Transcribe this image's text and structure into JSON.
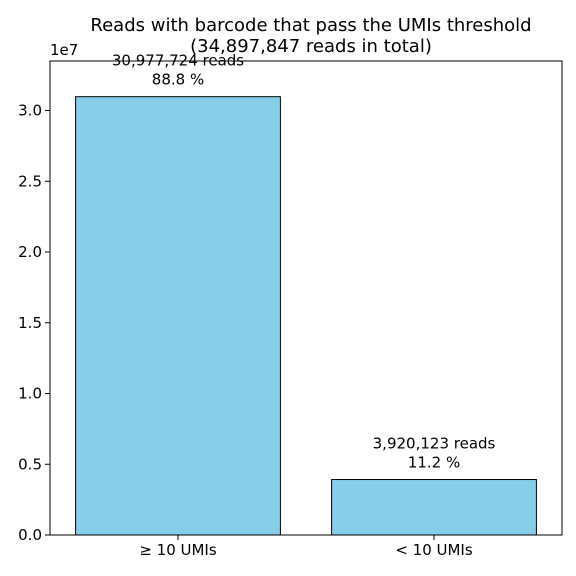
{
  "chart_data": {
    "type": "bar",
    "title": "Reads with barcode that pass the UMIs threshold",
    "subtitle": "(34,897,847 reads in total)",
    "xlabel": "",
    "ylabel": "",
    "y_scale_label": "1e7",
    "y_tick_values": [
      0.0,
      0.5,
      1.0,
      1.5,
      2.0,
      2.5,
      3.0
    ],
    "y_tick_labels": [
      "0.0",
      "0.5",
      "1.0",
      "1.5",
      "2.0",
      "2.5",
      "3.0"
    ],
    "ylim": [
      0,
      33500000
    ],
    "categories": [
      "≥ 10 UMIs",
      "< 10 UMIs"
    ],
    "values": [
      30977724,
      3920123
    ],
    "annotations": [
      {
        "reads": "30,977,724 reads",
        "percent": "88.8 %"
      },
      {
        "reads": "3,920,123 reads",
        "percent": "11.2 %"
      }
    ],
    "colors": {
      "bar_fill": "#87ceeb",
      "bar_edge": "#000000"
    },
    "grid": false,
    "legend": "none"
  }
}
